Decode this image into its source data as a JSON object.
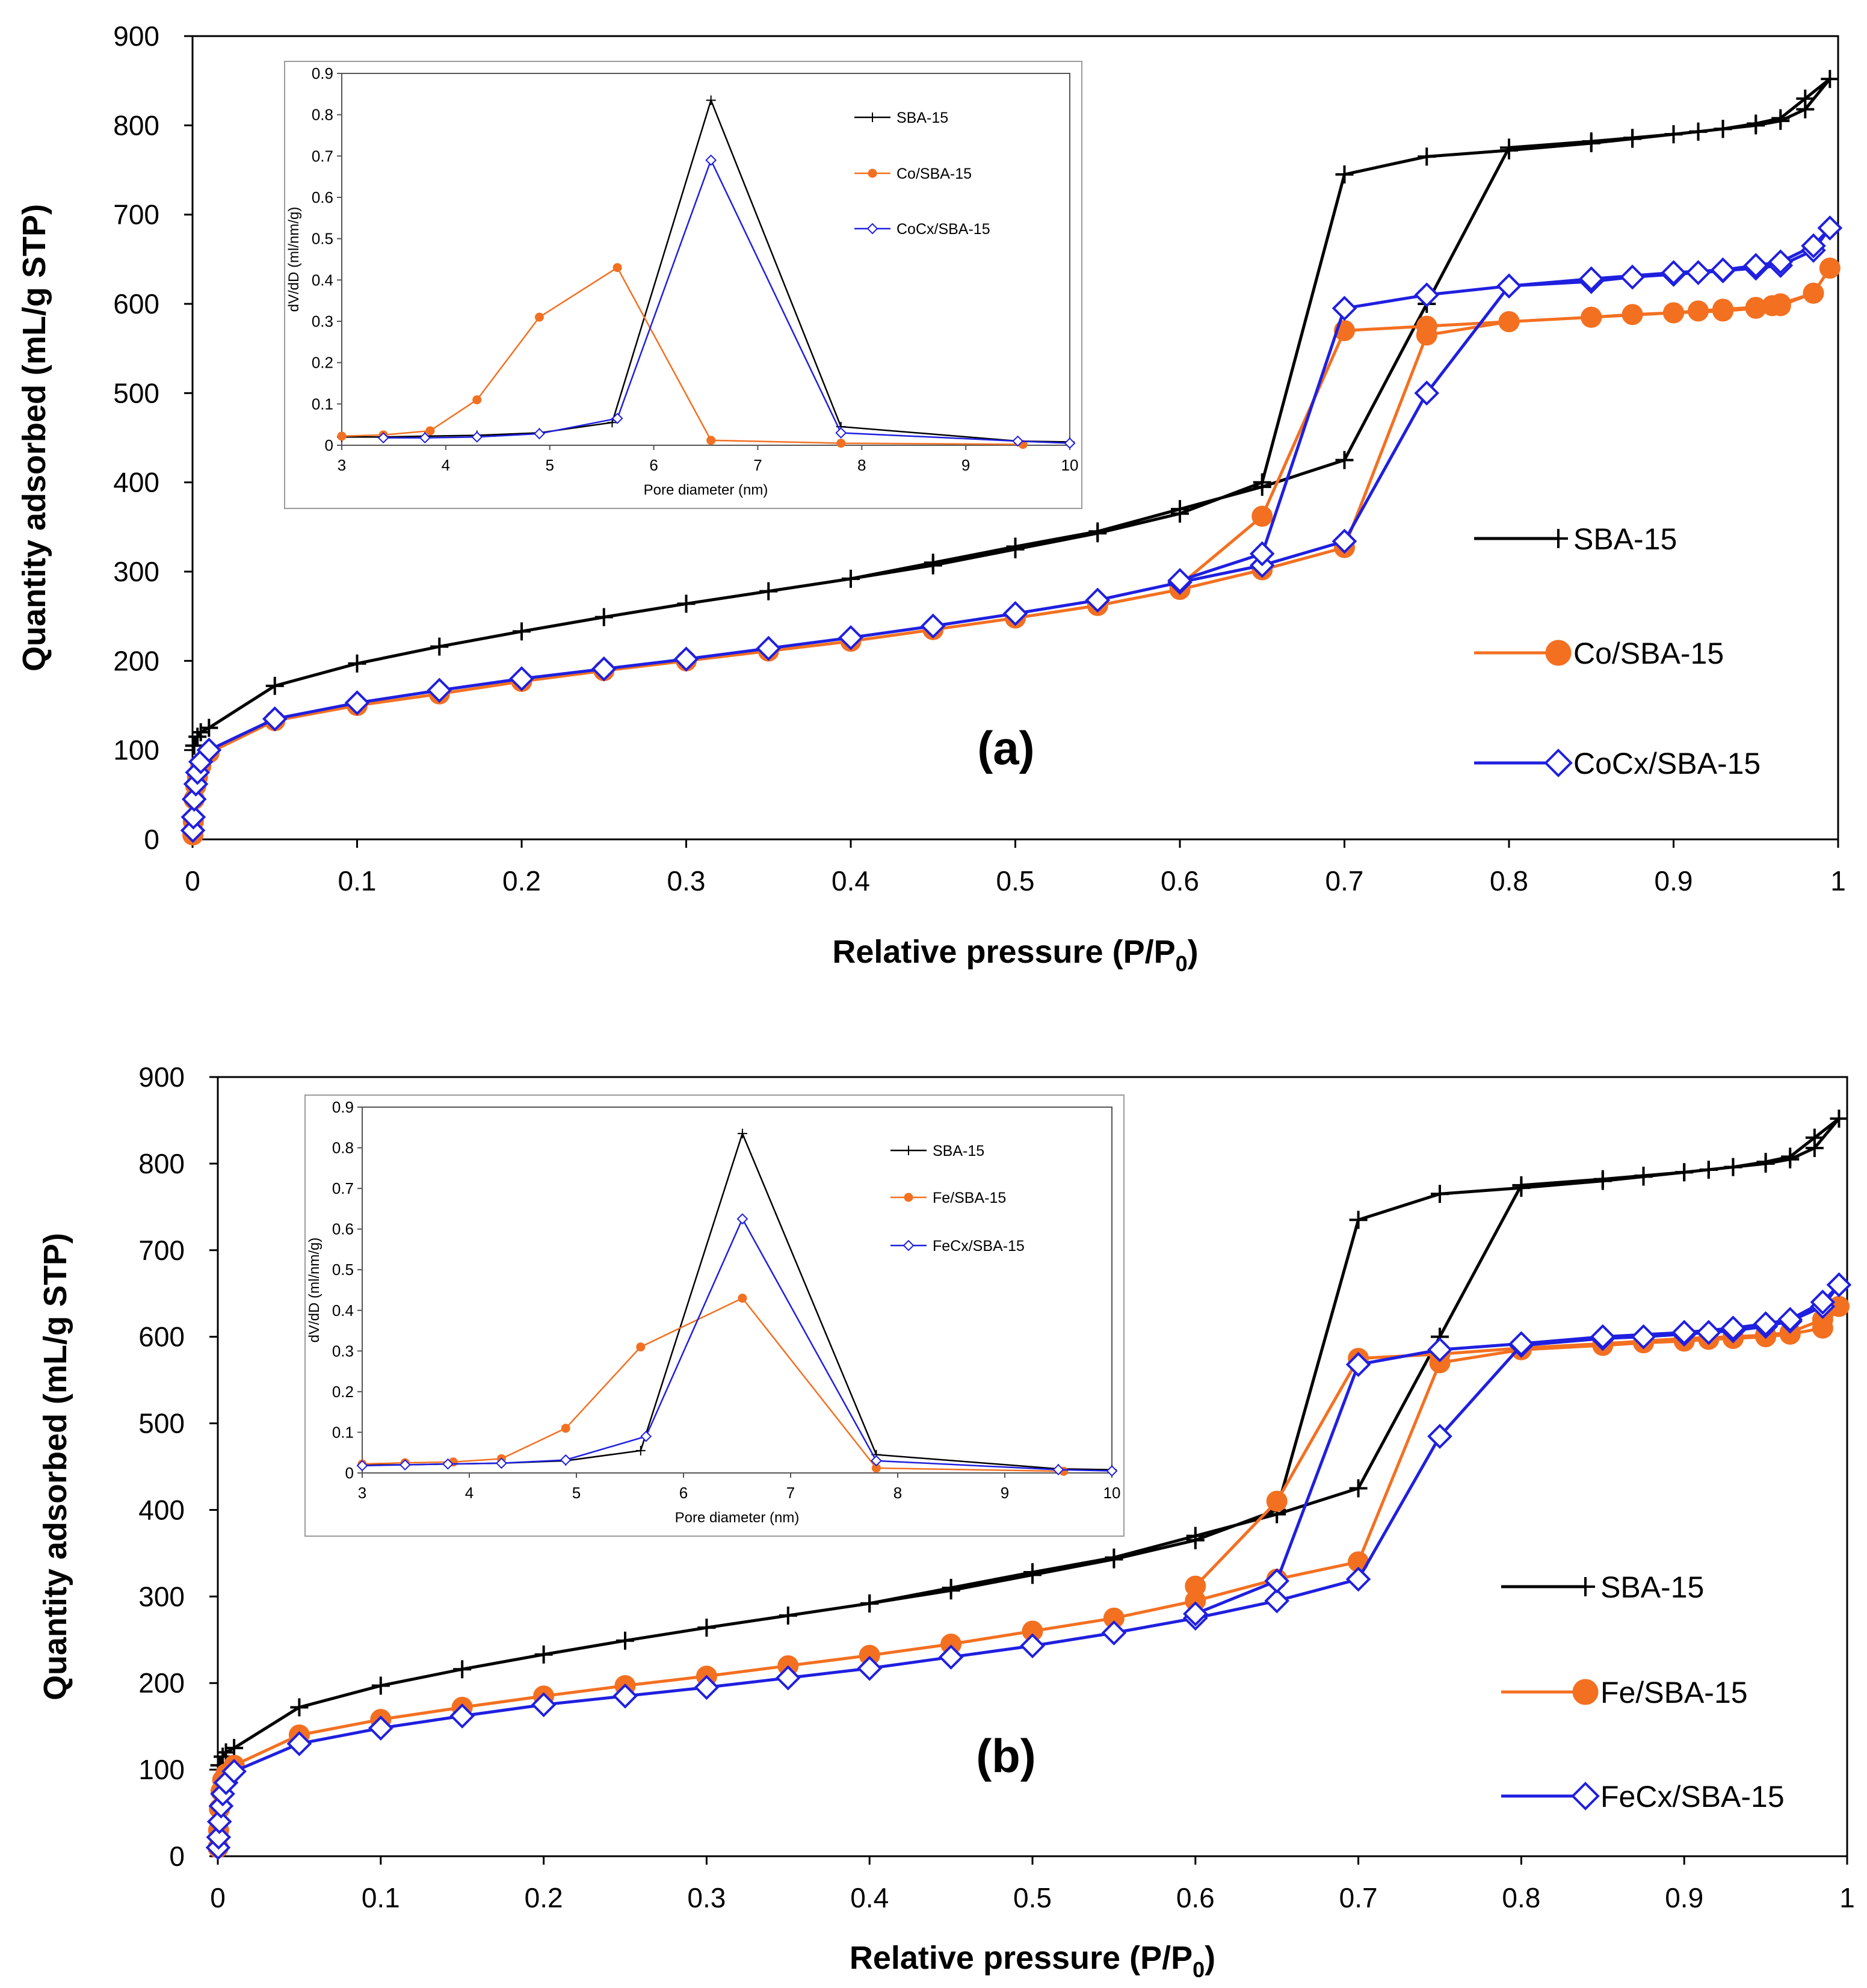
{
  "colors": {
    "black": "#000000",
    "orange": "#F37021",
    "blue": "#1F1FE0"
  },
  "chart_data": [
    {
      "type": "line",
      "panel_label": "(a)",
      "xlabel": "Relative pressure (P/P",
      "xlabel_sub": "0",
      "xlabel_close": ")",
      "ylabel": "Quantity adsorbed (mL/g STP)",
      "xlim": [
        0,
        1
      ],
      "ylim": [
        0,
        900
      ],
      "xticks": [
        "0",
        "0.1",
        "0.2",
        "0.3",
        "0.4",
        "0.5",
        "0.6",
        "0.7",
        "0.8",
        "0.9",
        "1"
      ],
      "yticks": [
        "0",
        "100",
        "200",
        "300",
        "400",
        "500",
        "600",
        "700",
        "800",
        "900"
      ],
      "legend_position": "right",
      "series": [
        {
          "name": "SBA-15",
          "marker": "plus",
          "color": "#000000",
          "x": [
            0.001,
            0.003,
            0.005,
            0.01,
            0.05,
            0.1,
            0.15,
            0.2,
            0.25,
            0.3,
            0.35,
            0.4,
            0.45,
            0.5,
            0.55,
            0.6,
            0.65,
            0.7,
            0.75,
            0.8,
            0.85,
            0.875,
            0.9,
            0.915,
            0.93,
            0.95,
            0.965,
            0.98,
            0.995,
            0.98,
            0.965,
            0.95,
            0.93,
            0.915,
            0.9,
            0.875,
            0.85,
            0.8,
            0.75,
            0.7,
            0.65,
            0.6,
            0.55,
            0.5,
            0.45,
            0.4
          ],
          "y": [
            105,
            115,
            120,
            125,
            172,
            197,
            216,
            233,
            249,
            264,
            278,
            292,
            307,
            325,
            343,
            365,
            400,
            745,
            765,
            772,
            780,
            785,
            790,
            793,
            796,
            800,
            805,
            818,
            852,
            830,
            808,
            802,
            796,
            793,
            790,
            786,
            782,
            775,
            600,
            425,
            395,
            370,
            345,
            328,
            310,
            292
          ]
        },
        {
          "name": "Co/SBA-15",
          "marker": "circle",
          "color": "#F37021",
          "x": [
            0.0002,
            0.0005,
            0.001,
            0.002,
            0.003,
            0.005,
            0.01,
            0.05,
            0.1,
            0.15,
            0.2,
            0.25,
            0.3,
            0.35,
            0.4,
            0.45,
            0.5,
            0.55,
            0.6,
            0.65,
            0.7,
            0.75,
            0.8,
            0.85,
            0.875,
            0.9,
            0.915,
            0.93,
            0.95,
            0.96,
            0.965,
            0.985,
            0.995,
            0.985,
            0.965,
            0.95,
            0.93,
            0.9,
            0.85,
            0.8,
            0.75,
            0.7,
            0.65,
            0.6
          ],
          "y": [
            5,
            20,
            45,
            60,
            70,
            82,
            97,
            133,
            150,
            163,
            177,
            189,
            200,
            211,
            222,
            235,
            248,
            262,
            280,
            302,
            327,
            565,
            580,
            585,
            588,
            590,
            592,
            594,
            596,
            598,
            600,
            612,
            640,
            612,
            598,
            595,
            592,
            590,
            585,
            580,
            575,
            570,
            362,
            285
          ]
        },
        {
          "name": "CoCx/SBA-15",
          "marker": "diamond",
          "color": "#1F1FE0",
          "x": [
            0.0002,
            0.0005,
            0.001,
            0.002,
            0.003,
            0.005,
            0.01,
            0.05,
            0.1,
            0.15,
            0.2,
            0.25,
            0.3,
            0.35,
            0.4,
            0.45,
            0.5,
            0.55,
            0.6,
            0.65,
            0.7,
            0.75,
            0.8,
            0.85,
            0.875,
            0.9,
            0.915,
            0.93,
            0.95,
            0.965,
            0.985,
            0.995,
            0.985,
            0.965,
            0.95,
            0.93,
            0.9,
            0.85,
            0.8,
            0.75,
            0.7,
            0.65,
            0.6
          ],
          "y": [
            10,
            25,
            45,
            62,
            75,
            87,
            100,
            135,
            153,
            167,
            180,
            191,
            202,
            214,
            226,
            239,
            253,
            268,
            288,
            307,
            334,
            500,
            620,
            625,
            630,
            633,
            635,
            637,
            640,
            643,
            660,
            685,
            665,
            647,
            643,
            638,
            635,
            628,
            620,
            610,
            595,
            320,
            290
          ]
        }
      ],
      "inset": {
        "xlabel": "Pore diameter (nm)",
        "ylabel": "dV/dD (ml/nm/g)",
        "xlim": [
          3,
          10
        ],
        "ylim": [
          0,
          0.9
        ],
        "xticks": [
          "3",
          "4",
          "5",
          "6",
          "7",
          "8",
          "9",
          "10"
        ],
        "yticks": [
          "0",
          "0.1",
          "0.2",
          "0.3",
          "0.4",
          "0.5",
          "0.6",
          "0.7",
          "0.8",
          "0.9"
        ],
        "series": [
          {
            "name": "SBA-15",
            "marker": "plus",
            "color": "#000000",
            "x": [
              3,
              3.4,
              3.8,
              4.3,
              4.9,
              5.6,
              6.55,
              7.8,
              9.5,
              10
            ],
            "y": [
              0.02,
              0.02,
              0.022,
              0.024,
              0.03,
              0.055,
              0.835,
              0.045,
              0.01,
              0.008
            ]
          },
          {
            "name": "Co/SBA-15",
            "marker": "circle",
            "color": "#F37021",
            "x": [
              3,
              3.4,
              3.85,
              4.3,
              4.9,
              5.65,
              6.55,
              7.8,
              9.55
            ],
            "y": [
              0.022,
              0.025,
              0.035,
              0.11,
              0.31,
              0.43,
              0.012,
              0.005,
              0.002
            ]
          },
          {
            "name": "CoCx/SBA-15",
            "marker": "diamond",
            "color": "#1F1FE0",
            "x": [
              3.4,
              3.8,
              4.3,
              4.9,
              5.65,
              6.55,
              7.8,
              9.5,
              10
            ],
            "y": [
              0.018,
              0.018,
              0.02,
              0.028,
              0.065,
              0.69,
              0.03,
              0.01,
              0.005
            ]
          }
        ]
      }
    },
    {
      "type": "line",
      "panel_label": "(b)",
      "xlabel": "Relative pressure (P/P",
      "xlabel_sub": "0",
      "xlabel_close": ")",
      "ylabel": "Quantity adsorbed (mL/g STP)",
      "xlim": [
        0,
        1
      ],
      "ylim": [
        0,
        900
      ],
      "xticks": [
        "0",
        "0.1",
        "0.2",
        "0.3",
        "0.4",
        "0.5",
        "0.6",
        "0.7",
        "0.8",
        "0.9",
        "1"
      ],
      "yticks": [
        "0",
        "100",
        "200",
        "300",
        "400",
        "500",
        "600",
        "700",
        "800",
        "900"
      ],
      "legend_position": "right",
      "series": [
        {
          "name": "SBA-15",
          "marker": "plus",
          "color": "#000000",
          "x": [
            0.001,
            0.003,
            0.005,
            0.01,
            0.05,
            0.1,
            0.15,
            0.2,
            0.25,
            0.3,
            0.35,
            0.4,
            0.45,
            0.5,
            0.55,
            0.6,
            0.65,
            0.7,
            0.75,
            0.8,
            0.85,
            0.875,
            0.9,
            0.915,
            0.93,
            0.95,
            0.965,
            0.98,
            0.995,
            0.98,
            0.965,
            0.95,
            0.93,
            0.915,
            0.9,
            0.875,
            0.85,
            0.8,
            0.75,
            0.7,
            0.65,
            0.6,
            0.55,
            0.5,
            0.45,
            0.4
          ],
          "y": [
            105,
            115,
            120,
            125,
            172,
            197,
            216,
            233,
            249,
            264,
            278,
            292,
            307,
            325,
            343,
            365,
            400,
            735,
            765,
            772,
            780,
            785,
            790,
            793,
            796,
            800,
            805,
            818,
            852,
            830,
            808,
            802,
            796,
            793,
            790,
            786,
            782,
            775,
            600,
            425,
            395,
            370,
            345,
            328,
            310,
            292
          ]
        },
        {
          "name": "Fe/SBA-15",
          "marker": "circle",
          "color": "#F37021",
          "x": [
            0.0002,
            0.0005,
            0.001,
            0.002,
            0.003,
            0.005,
            0.01,
            0.05,
            0.1,
            0.15,
            0.2,
            0.25,
            0.3,
            0.35,
            0.4,
            0.45,
            0.5,
            0.55,
            0.6,
            0.65,
            0.7,
            0.75,
            0.8,
            0.85,
            0.875,
            0.9,
            0.915,
            0.93,
            0.95,
            0.965,
            0.985,
            0.995,
            0.985,
            0.965,
            0.95,
            0.93,
            0.9,
            0.85,
            0.8,
            0.75,
            0.7,
            0.65,
            0.6
          ],
          "y": [
            10,
            30,
            55,
            75,
            88,
            95,
            105,
            140,
            158,
            172,
            185,
            197,
            208,
            220,
            232,
            245,
            260,
            275,
            295,
            320,
            340,
            570,
            585,
            590,
            593,
            595,
            597,
            598,
            600,
            603,
            610,
            635,
            620,
            605,
            602,
            600,
            598,
            592,
            587,
            580,
            575,
            410,
            312
          ]
        },
        {
          "name": "FeCx/SBA-15",
          "marker": "diamond",
          "color": "#1F1FE0",
          "x": [
            0.0002,
            0.0005,
            0.001,
            0.002,
            0.003,
            0.005,
            0.01,
            0.05,
            0.1,
            0.15,
            0.2,
            0.25,
            0.3,
            0.35,
            0.4,
            0.45,
            0.5,
            0.55,
            0.6,
            0.65,
            0.7,
            0.75,
            0.8,
            0.85,
            0.875,
            0.9,
            0.915,
            0.93,
            0.95,
            0.965,
            0.985,
            0.995,
            0.985,
            0.965,
            0.95,
            0.93,
            0.9,
            0.85,
            0.8,
            0.75,
            0.7,
            0.65,
            0.6
          ],
          "y": [
            10,
            22,
            40,
            58,
            72,
            85,
            98,
            130,
            148,
            162,
            175,
            185,
            195,
            206,
            217,
            230,
            243,
            258,
            275,
            295,
            320,
            485,
            590,
            598,
            600,
            603,
            605,
            607,
            612,
            618,
            635,
            660,
            640,
            620,
            615,
            610,
            605,
            600,
            592,
            585,
            568,
            318,
            280
          ]
        }
      ],
      "inset": {
        "xlabel": "Pore diameter (nm)",
        "ylabel": "dV/dD (ml/nm/g)",
        "xlim": [
          3,
          10
        ],
        "ylim": [
          0,
          0.9
        ],
        "xticks": [
          "3",
          "4",
          "5",
          "6",
          "7",
          "8",
          "9",
          "10"
        ],
        "yticks": [
          "0",
          "0.1",
          "0.2",
          "0.3",
          "0.4",
          "0.5",
          "0.6",
          "0.7",
          "0.8",
          "0.9"
        ],
        "series": [
          {
            "name": "SBA-15",
            "marker": "plus",
            "color": "#000000",
            "x": [
              3,
              3.4,
              3.8,
              4.3,
              4.9,
              5.6,
              6.55,
              7.8,
              9.5,
              10
            ],
            "y": [
              0.02,
              0.02,
              0.022,
              0.024,
              0.03,
              0.055,
              0.835,
              0.045,
              0.01,
              0.008
            ]
          },
          {
            "name": "Fe/SBA-15",
            "marker": "circle",
            "color": "#F37021",
            "x": [
              3,
              3.4,
              3.85,
              4.3,
              4.9,
              5.6,
              6.55,
              7.8,
              9.55
            ],
            "y": [
              0.022,
              0.025,
              0.027,
              0.035,
              0.11,
              0.31,
              0.43,
              0.012,
              0.004
            ]
          },
          {
            "name": "FeCx/SBA-15",
            "marker": "diamond",
            "color": "#1F1FE0",
            "x": [
              3,
              3.4,
              3.8,
              4.3,
              4.9,
              5.65,
              6.55,
              7.8,
              9.5,
              10
            ],
            "y": [
              0.018,
              0.02,
              0.022,
              0.024,
              0.032,
              0.09,
              0.625,
              0.03,
              0.008,
              0.005
            ]
          }
        ]
      }
    }
  ]
}
